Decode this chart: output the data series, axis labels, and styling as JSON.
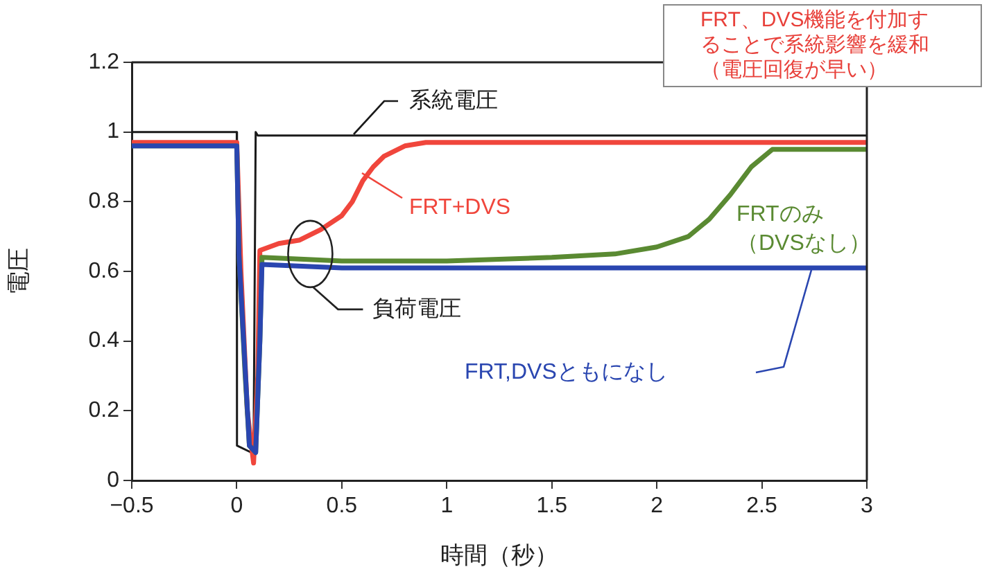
{
  "chart_data": {
    "type": "line",
    "xlabel": "時間（秒）",
    "ylabel": "電圧",
    "xlim": [
      -0.5,
      3
    ],
    "xticks": [
      {
        "value": -0.5,
        "label": "−0.5"
      },
      0,
      0.5,
      1,
      1.5,
      2,
      2.5,
      3
    ],
    "ylim": [
      0,
      1.2
    ],
    "yticks": [
      0,
      0.2,
      0.4,
      0.6,
      0.8,
      1,
      1.2
    ],
    "grid": false,
    "legend": false,
    "marker": "none",
    "line_style": "solid",
    "series": [
      {
        "name": "FRT,DVSともになし",
        "color": "#2a46b0",
        "x": [
          -0.5,
          0,
          0.01,
          0.06,
          0.09,
          0.11,
          0.12,
          0.5,
          3
        ],
        "values": [
          0.96,
          0.96,
          0.65,
          0.1,
          0.08,
          0.4,
          0.62,
          0.61,
          0.61
        ]
      },
      {
        "name": "FRTのみ（DVSなし）",
        "color": "#5a8a32",
        "x": [
          -0.5,
          0,
          0.01,
          0.04,
          0.06,
          0.09,
          0.11,
          0.12,
          0.5,
          1,
          1.5,
          1.8,
          2,
          2.15,
          2.25,
          2.35,
          2.45,
          2.55,
          3
        ],
        "values": [
          0.96,
          0.96,
          0.65,
          0.3,
          0.1,
          0.08,
          0.4,
          0.64,
          0.63,
          0.63,
          0.64,
          0.65,
          0.67,
          0.7,
          0.75,
          0.82,
          0.9,
          0.95,
          0.95
        ]
      },
      {
        "name": "FRT+DVS",
        "color": "#f0463c",
        "x": [
          -0.5,
          0,
          0.02,
          0.05,
          0.08,
          0.1,
          0.11,
          0.2,
          0.3,
          0.4,
          0.5,
          0.55,
          0.6,
          0.65,
          0.7,
          0.8,
          0.9,
          3
        ],
        "values": [
          0.97,
          0.97,
          0.6,
          0.2,
          0.05,
          0.3,
          0.66,
          0.68,
          0.69,
          0.72,
          0.76,
          0.8,
          0.86,
          0.9,
          0.93,
          0.96,
          0.97,
          0.97
        ]
      },
      {
        "name": "系統電圧",
        "color": "#1a1a1a",
        "x": [
          -0.5,
          0,
          0.001,
          0.07,
          0.08,
          0.09,
          0.1,
          0.15,
          3
        ],
        "values": [
          1,
          1,
          0.1,
          0.08,
          0.09,
          1,
          0.99,
          0.99,
          0.99
        ]
      }
    ],
    "annotations": [
      "負荷電圧",
      "FRT、DVS機能を付加することで系統影響を緩和（電圧回復が早い）"
    ]
  }
}
